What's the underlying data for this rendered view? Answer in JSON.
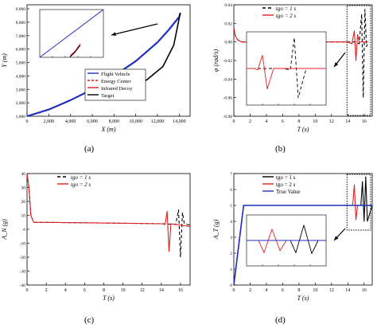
{
  "panels": [
    {
      "label": "(a)"
    },
    {
      "label": "(b)"
    },
    {
      "label": "(c)"
    },
    {
      "label": "(d)"
    }
  ],
  "chart_data": [
    {
      "panel": "(a)",
      "type": "line",
      "xlabel": "X (m)",
      "ylabel": "Y (m)",
      "xlim": [
        0,
        15000
      ],
      "ylim": [
        1000,
        9300
      ],
      "xticks": [
        "0",
        "2,000",
        "4,000",
        "6,000",
        "8,000",
        "10,000",
        "12,000",
        "14,000"
      ],
      "yticks": [
        "1,000",
        "2,000",
        "3,000",
        "4,000",
        "5,000",
        "6,000",
        "7,000",
        "8,000",
        "9,000"
      ],
      "legend_position": "lower-right",
      "legend": [
        "Flight Vehicle",
        "Energy Center",
        "Infrared Decoy",
        "Target"
      ],
      "series": [
        {
          "name": "Flight Vehicle",
          "color": "#1f2fbf",
          "x": [
            0,
            2000,
            4000,
            6000,
            8000,
            10000,
            12000,
            13000,
            14000,
            14100
          ],
          "y": [
            1000,
            1500,
            2200,
            3000,
            4000,
            5100,
            6500,
            7400,
            8400,
            8700
          ]
        },
        {
          "name": "Target",
          "color": "#000000",
          "x": [
            6500,
            9000,
            11000,
            12500,
            13500,
            14100
          ],
          "y": [
            3000,
            3150,
            3700,
            4700,
            6300,
            8700
          ]
        }
      ],
      "inset": {
        "series": [
          {
            "name": "Flight Vehicle",
            "color": "#1f2fbf",
            "x": [
              0,
              1
            ],
            "y": [
              0,
              1
            ]
          },
          {
            "name": "Energy Center",
            "color": "#d42020",
            "x": [
              0.48,
              0.56,
              0.64
            ],
            "y": [
              0.04,
              0.14,
              0.28
            ]
          },
          {
            "name": "Infrared Decoy",
            "color": "#d42020",
            "x": [
              0.48,
              0.56,
              0.64
            ],
            "y": [
              0.02,
              0.12,
              0.25
            ]
          },
          {
            "name": "Target",
            "color": "#000000",
            "x": [
              0.47,
              0.55,
              0.63
            ],
            "y": [
              0.0,
              0.1,
              0.26
            ]
          }
        ]
      }
    },
    {
      "panel": "(b)",
      "type": "line",
      "xlabel": "T (s)",
      "ylabel": "φ (rad/s)",
      "xlim": [
        0,
        17
      ],
      "ylim": [
        -0.08,
        0.04
      ],
      "xticks": [
        "0",
        "2",
        "4",
        "6",
        "8",
        "10",
        "12",
        "14",
        "16"
      ],
      "yticks": [
        "-0.08",
        "-0.06",
        "-0.04",
        "-0.02",
        "0.00",
        "0.02",
        "0.04"
      ],
      "legend_position": "top-center",
      "legend": [
        "tgo = 1 s",
        "tgo = 2 s"
      ],
      "series": [
        {
          "name": "tgo = 1 s",
          "color": "#000000",
          "dash": "4,3",
          "x": [
            0,
            0.2,
            0.5,
            1,
            14,
            15,
            15.4,
            15.7,
            15.9,
            16.1,
            16.3,
            16.5
          ],
          "y": [
            0.015,
            0.006,
            0.002,
            0.0,
            0.0,
            0.0,
            -0.002,
            0.03,
            -0.06,
            0.035,
            -0.005,
            0.0
          ]
        },
        {
          "name": "tgo = 2 s",
          "color": "#e02020",
          "dash": "",
          "x": [
            0,
            0.2,
            0.5,
            1,
            14,
            14.5,
            14.8,
            15.0,
            15.2,
            15.4,
            16.5
          ],
          "y": [
            0.015,
            0.006,
            0.002,
            0.0,
            0.0,
            -0.002,
            0.012,
            -0.02,
            0.008,
            0.0,
            0.0
          ]
        }
      ],
      "inset": {
        "series": [
          {
            "name": "tgo = 1 s",
            "color": "#000000",
            "dash": "4,3",
            "x": [
              0,
              0.45,
              0.55,
              0.6,
              0.65,
              0.75,
              1
            ],
            "y": [
              0.5,
              0.5,
              0.48,
              0.92,
              0.1,
              0.5,
              0.5
            ]
          },
          {
            "name": "tgo = 2 s",
            "color": "#e02020",
            "dash": "",
            "x": [
              0,
              0.1,
              0.14,
              0.2,
              0.26,
              0.34,
              1
            ],
            "y": [
              0.5,
              0.5,
              0.48,
              0.68,
              0.22,
              0.5,
              0.5
            ]
          }
        ]
      }
    },
    {
      "panel": "(c)",
      "type": "line",
      "xlabel": "T (s)",
      "ylabel": "A_N (g)",
      "xlim": [
        0,
        17
      ],
      "ylim": [
        -40,
        40
      ],
      "xticks": [
        "0",
        "2",
        "4",
        "6",
        "8",
        "10",
        "12",
        "14",
        "16"
      ],
      "yticks": [
        "-40",
        "-30",
        "-20",
        "-10",
        "0",
        "10",
        "20",
        "30",
        "40"
      ],
      "legend_position": "top-center",
      "legend": [
        "tgo = 1 s",
        "tgo = 2 s"
      ],
      "series": [
        {
          "name": "tgo = 1 s",
          "color": "#000000",
          "dash": "4,3",
          "x": [
            0,
            0.2,
            0.4,
            0.7,
            2,
            8,
            14,
            15.5,
            15.8,
            16.0,
            16.2,
            16.4,
            17
          ],
          "y": [
            40,
            30,
            10,
            5,
            5,
            4.5,
            4,
            3.5,
            14,
            -20,
            12,
            4,
            3
          ]
        },
        {
          "name": "tgo = 2 s",
          "color": "#e02020",
          "dash": "",
          "x": [
            0,
            0.2,
            0.4,
            0.7,
            2,
            8,
            14,
            14.4,
            14.6,
            14.8,
            15.0,
            16,
            17
          ],
          "y": [
            40,
            30,
            10,
            5,
            5,
            4.5,
            4,
            3.5,
            13,
            -16,
            4,
            3,
            2
          ]
        }
      ]
    },
    {
      "panel": "(d)",
      "type": "line",
      "xlabel": "T (s)",
      "ylabel": "A_T (g)",
      "xlim": [
        0,
        17
      ],
      "ylim": [
        0,
        7
      ],
      "xticks": [
        "0",
        "2",
        "4",
        "6",
        "8",
        "10",
        "12",
        "14",
        "16"
      ],
      "yticks": [
        "0",
        "1",
        "2",
        "3",
        "4",
        "5",
        "6",
        "7"
      ],
      "legend_position": "top-center",
      "legend": [
        "tgo = 1 s",
        "tgo = 2 s",
        "True Value"
      ],
      "series": [
        {
          "name": "tgo = 1 s",
          "color": "#000000",
          "dash": "",
          "x": [
            0,
            1.2,
            14,
            15.6,
            15.8,
            16.0,
            16.2,
            16.4,
            17
          ],
          "y": [
            0,
            5,
            5,
            5,
            6.5,
            4,
            6.8,
            4,
            5
          ]
        },
        {
          "name": "tgo = 2 s",
          "color": "#e02020",
          "dash": "",
          "x": [
            0,
            1.2,
            14,
            14.6,
            14.8,
            15.0,
            15.2,
            17
          ],
          "y": [
            0,
            5,
            5,
            5,
            6.3,
            4.1,
            5,
            5
          ]
        },
        {
          "name": "True Value",
          "color": "#1f2fbf",
          "dash": "",
          "x": [
            0,
            1.2,
            17
          ],
          "y": [
            0,
            5,
            5
          ]
        }
      ],
      "inset": {
        "series": [
          {
            "name": "tgo = 1 s",
            "color": "#000000",
            "dash": "",
            "x": [
              0,
              0.55,
              0.62,
              0.72,
              0.82,
              0.9,
              1
            ],
            "y": [
              0.5,
              0.5,
              0.26,
              0.8,
              0.24,
              0.5,
              0.5
            ]
          },
          {
            "name": "tgo = 2 s",
            "color": "#e02020",
            "dash": "",
            "x": [
              0,
              0.15,
              0.22,
              0.32,
              0.42,
              0.5,
              1
            ],
            "y": [
              0.5,
              0.5,
              0.26,
              0.72,
              0.3,
              0.5,
              0.5
            ]
          },
          {
            "name": "True Value",
            "color": "#1f2fbf",
            "dash": "",
            "x": [
              0,
              1
            ],
            "y": [
              0.5,
              0.5
            ]
          }
        ]
      }
    }
  ]
}
